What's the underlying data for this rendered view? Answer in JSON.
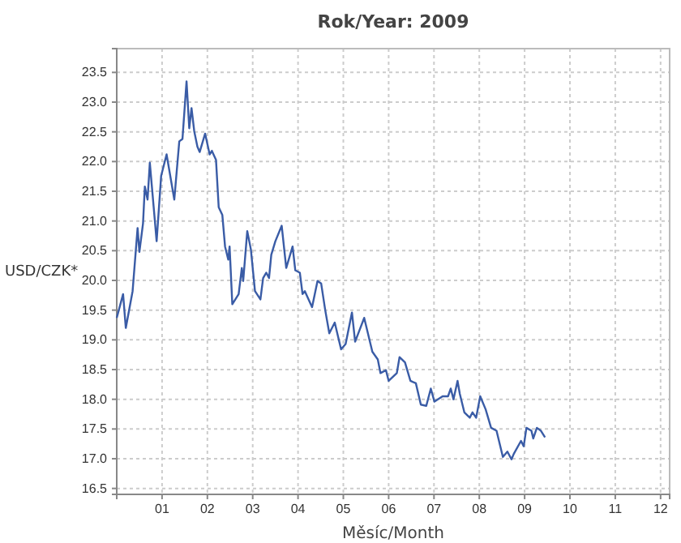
{
  "chart_data": {
    "type": "line",
    "title": "Rok/Year: 2009",
    "xlabel": "Měsíc/Month",
    "ylabel": "USD/CZK*",
    "grid": true,
    "marker": "none",
    "line_style": "solid",
    "xlim": [
      0,
      12.2
    ],
    "ylim": [
      16.4,
      23.9
    ],
    "xticks": [
      {
        "value": 1,
        "label": "01"
      },
      {
        "value": 2,
        "label": "02"
      },
      {
        "value": 3,
        "label": "03"
      },
      {
        "value": 4,
        "label": "04"
      },
      {
        "value": 5,
        "label": "05"
      },
      {
        "value": 6,
        "label": "06"
      },
      {
        "value": 7,
        "label": "07"
      },
      {
        "value": 8,
        "label": "08"
      },
      {
        "value": 9,
        "label": "09"
      },
      {
        "value": 10,
        "label": "10"
      },
      {
        "value": 11,
        "label": "11"
      },
      {
        "value": 12,
        "label": "12"
      }
    ],
    "yticks": [
      {
        "value": 16.5,
        "label": "16.5"
      },
      {
        "value": 17,
        "label": "17.0"
      },
      {
        "value": 17.5,
        "label": "17.5"
      },
      {
        "value": 18,
        "label": "18.0"
      },
      {
        "value": 18.5,
        "label": "18.5"
      },
      {
        "value": 19,
        "label": "19.0"
      },
      {
        "value": 19.5,
        "label": "19.5"
      },
      {
        "value": 20,
        "label": "20.0"
      },
      {
        "value": 20.5,
        "label": "20.5"
      },
      {
        "value": 21,
        "label": "21.0"
      },
      {
        "value": 21.5,
        "label": "21.5"
      },
      {
        "value": 22,
        "label": "22.0"
      },
      {
        "value": 22.5,
        "label": "22.5"
      },
      {
        "value": 23,
        "label": "23.0"
      },
      {
        "value": 23.5,
        "label": "23.5"
      }
    ],
    "series": [
      {
        "color": "#3a5ca6",
        "x": [
          0,
          0.14,
          0.2,
          0.35,
          0.46,
          0.5,
          0.58,
          0.62,
          0.68,
          0.73,
          0.88,
          0.98,
          1.1,
          1.27,
          1.38,
          1.45,
          1.54,
          1.6,
          1.65,
          1.71,
          1.78,
          1.83,
          1.95,
          2.05,
          2.1,
          2.19,
          2.25,
          2.33,
          2.39,
          2.46,
          2.49,
          2.55,
          2.69,
          2.76,
          2.79,
          2.88,
          2.96,
          3.05,
          3.17,
          3.23,
          3.3,
          3.36,
          3.41,
          3.5,
          3.64,
          3.74,
          3.88,
          3.94,
          4.04,
          4.1,
          4.15,
          4.31,
          4.43,
          4.51,
          4.6,
          4.69,
          4.81,
          4.95,
          5.05,
          5.19,
          5.26,
          5.35,
          5.46,
          5.64,
          5.76,
          5.82,
          5.94,
          6,
          6.18,
          6.24,
          6.36,
          6.48,
          6.6,
          6.71,
          6.83,
          6.93,
          7.01,
          7.19,
          7.31,
          7.37,
          7.43,
          7.52,
          7.57,
          7.67,
          7.79,
          7.85,
          7.93,
          8.02,
          8.14,
          8.26,
          8.38,
          8.52,
          8.62,
          8.71,
          8.76,
          8.92,
          8.98,
          9.04,
          9.15,
          9.19,
          9.27,
          9.36,
          9.45
        ],
        "values": [
          19.37,
          19.77,
          19.2,
          19.82,
          20.88,
          20.48,
          20.96,
          21.58,
          21.36,
          21.98,
          20.66,
          21.76,
          22.12,
          21.36,
          22.34,
          22.38,
          23.35,
          22.56,
          22.9,
          22.51,
          22.25,
          22.16,
          22.47,
          22.12,
          22.18,
          22.03,
          21.23,
          21.1,
          20.57,
          20.35,
          20.57,
          19.6,
          19.77,
          20.21,
          19.99,
          20.83,
          20.52,
          19.82,
          19.68,
          20.04,
          20.13,
          20.04,
          20.43,
          20.66,
          20.92,
          20.21,
          20.57,
          20.17,
          20.13,
          19.77,
          19.82,
          19.55,
          19.99,
          19.95,
          19.5,
          19.11,
          19.29,
          18.84,
          18.93,
          19.46,
          18.97,
          19.15,
          19.37,
          18.8,
          18.67,
          18.44,
          18.49,
          18.31,
          18.44,
          18.71,
          18.62,
          18.31,
          18.27,
          17.91,
          17.89,
          18.18,
          17.96,
          18.05,
          18.05,
          18.18,
          18,
          18.31,
          18.09,
          17.78,
          17.69,
          17.78,
          17.69,
          18.05,
          17.83,
          17.52,
          17.47,
          17.03,
          17.12,
          16.99,
          17.08,
          17.3,
          17.21,
          17.52,
          17.47,
          17.34,
          17.52,
          17.47,
          17.36
        ]
      }
    ]
  }
}
